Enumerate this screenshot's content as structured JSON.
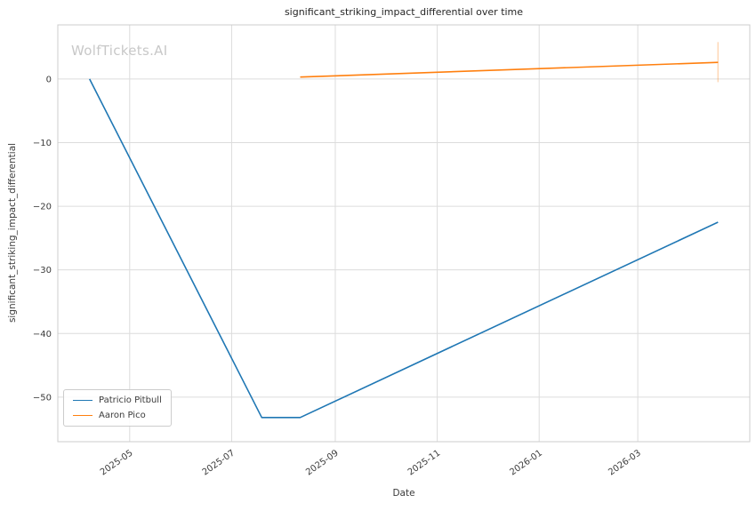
{
  "chart_data": {
    "type": "line",
    "title": "significant_striking_impact_differential over time",
    "xlabel": "Date",
    "ylabel": "significant_striking_impact_differential",
    "watermark": "WolfTickets.AI",
    "legend_position": "lower left",
    "grid": true,
    "background": "#ffffff",
    "grid_color": "#dcdcdc",
    "spine_color": "#cccccc",
    "text_color": "#3b3b3b",
    "xlim": [
      "2025-03-19",
      "2026-05-07"
    ],
    "ylim": [
      -57.0,
      8.5
    ],
    "x_ticks": [
      {
        "label": "2025-05",
        "date": "2025-05-01"
      },
      {
        "label": "2025-07",
        "date": "2025-07-01"
      },
      {
        "label": "2025-09",
        "date": "2025-09-01"
      },
      {
        "label": "2025-11",
        "date": "2025-11-01"
      },
      {
        "label": "2026-01",
        "date": "2026-01-01"
      },
      {
        "label": "2026-03",
        "date": "2026-03-01"
      }
    ],
    "y_ticks": [
      0,
      -10,
      -20,
      -30,
      -40,
      -50
    ],
    "series": [
      {
        "name": "Patricio Pitbull",
        "color": "#1f77b4",
        "points": [
          [
            "2025-04-07",
            0.0
          ],
          [
            "2025-07-19",
            -53.2
          ],
          [
            "2025-08-11",
            -53.2
          ],
          [
            "2026-04-18",
            -22.5
          ]
        ]
      },
      {
        "name": "Aaron Pico",
        "color": "#ff7f0e",
        "points": [
          [
            "2025-08-11",
            0.3
          ],
          [
            "2026-04-18",
            2.6
          ]
        ]
      }
    ],
    "end_marker": {
      "date": "2026-04-18",
      "from": -0.5,
      "to": 5.8,
      "color": "#ff7f0e",
      "opacity": 0.3
    }
  }
}
